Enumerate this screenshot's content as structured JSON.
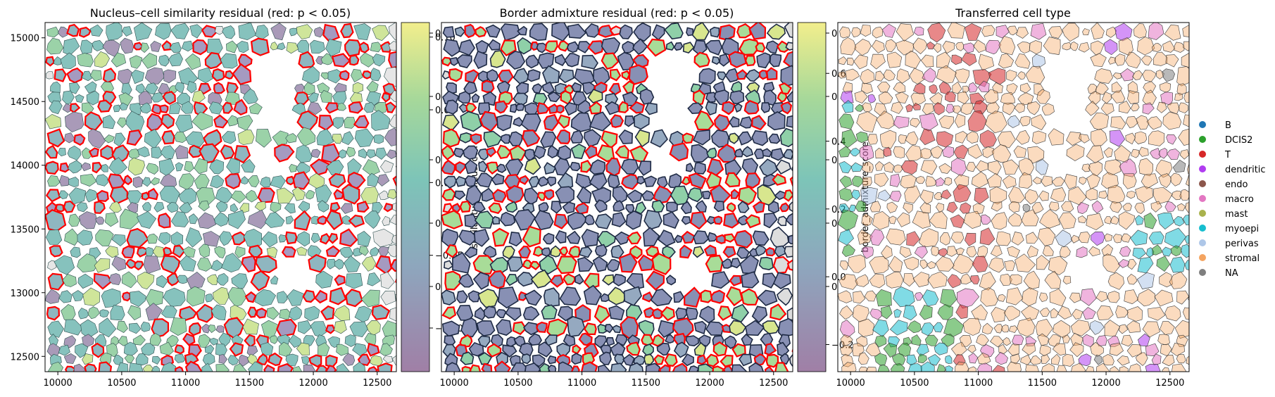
{
  "colors": {
    "similarity_red": "#ff0000",
    "cell_edge": "#333333",
    "grey_fill": "#e6e6e6",
    "viridis_stops": [
      "#a07fa6",
      "#8ea6bd",
      "#7dc4b8",
      "#a6d89a",
      "#f2ee8c"
    ]
  },
  "chart_data": [
    {
      "type": "spatial-polygon-map",
      "title": "Nucleus–cell similarity residual (red: p < 0.05)",
      "x_ticks": [
        10000,
        10500,
        11000,
        11500,
        12000,
        12500
      ],
      "y_ticks": [
        12500,
        13000,
        13500,
        14000,
        14500,
        15000
      ],
      "xlim": [
        9900,
        12650
      ],
      "ylim": [
        15120,
        12380
      ],
      "x_tick_labels": [
        "10000",
        "10500",
        "11000",
        "11500",
        "12000",
        "12500"
      ],
      "y_tick_labels": [
        "12500",
        "13000",
        "13500",
        "14000",
        "14500",
        "15000"
      ],
      "colorbar": {
        "label": "similarity_nucleus_cell",
        "range": [
          -0.13,
          0.11
        ],
        "ticks": [
          0.1,
          0.05,
          0.0,
          -0.05,
          -0.1
        ],
        "tick_labels": [
          "0.10",
          "0.05",
          "0.00",
          "−0.05",
          "−0.10"
        ]
      },
      "highlight": "red: p < 0.05"
    },
    {
      "type": "spatial-polygon-map",
      "title": "Border admixture residual (red: p < 0.05)",
      "x_ticks": [
        10000,
        10500,
        11000,
        11500,
        12000,
        12500
      ],
      "xlim": [
        9900,
        12650
      ],
      "ylim": [
        15120,
        12380
      ],
      "x_tick_labels": [
        "10000",
        "10500",
        "11000",
        "11500",
        "12000",
        "12500"
      ],
      "colorbar": {
        "label": "border_admixture_score",
        "range": [
          -0.28,
          0.75
        ],
        "ticks": [
          0.6,
          0.4,
          0.2,
          0.0,
          -0.2
        ],
        "tick_labels": [
          "0.6",
          "0.4",
          "0.2",
          "0.0",
          "−0.2"
        ]
      },
      "highlight": "red: p < 0.05"
    },
    {
      "type": "spatial-polygon-map",
      "title": "Transferred cell type",
      "x_ticks": [
        10000,
        10500,
        11000,
        11500,
        12000,
        12500
      ],
      "xlim": [
        9900,
        12650
      ],
      "ylim": [
        15120,
        12380
      ],
      "x_tick_labels": [
        "10000",
        "10500",
        "11000",
        "11500",
        "12000",
        "12500"
      ],
      "legend_position": "right",
      "legend": [
        {
          "label": "B",
          "color": "#1f77b4"
        },
        {
          "label": "DCIS2",
          "color": "#2ca02c"
        },
        {
          "label": "T",
          "color": "#d62728"
        },
        {
          "label": "dendritic",
          "color": "#b03cf0"
        },
        {
          "label": "endo",
          "color": "#8c564b"
        },
        {
          "label": "macro",
          "color": "#e377c2"
        },
        {
          "label": "mast",
          "color": "#a9b24d"
        },
        {
          "label": "myoepi",
          "color": "#17becf"
        },
        {
          "label": "perivas",
          "color": "#aec7e8"
        },
        {
          "label": "stromal",
          "color": "#f4a460"
        },
        {
          "label": "NA",
          "color": "#7f7f7f"
        }
      ]
    }
  ],
  "overlaid_tick_labels": {
    "panel1": [
      "0",
      "0",
      "0",
      "0",
      "0"
    ],
    "panel2": [
      "0",
      "0",
      "0",
      "0",
      "0"
    ]
  }
}
